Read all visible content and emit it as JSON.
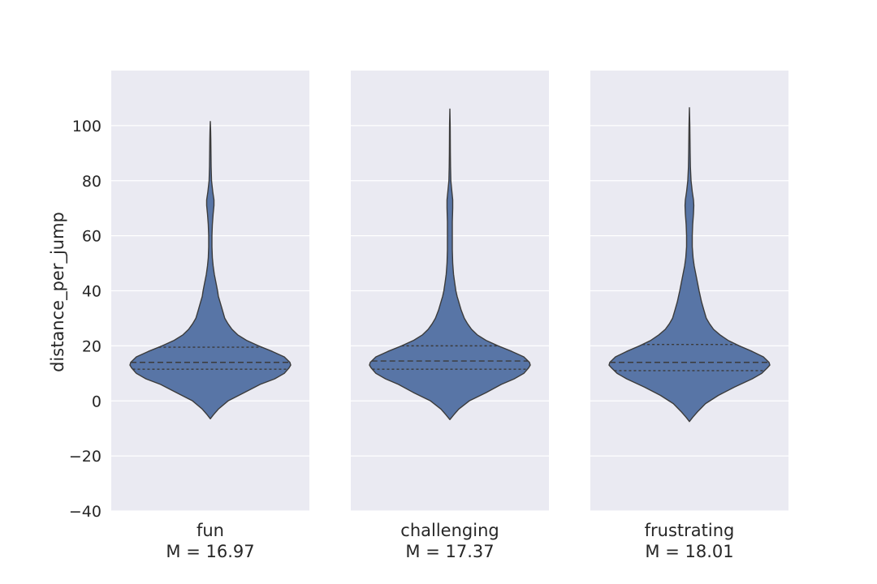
{
  "chart_data": {
    "type": "violin",
    "ylabel": "distance_per_jump",
    "ylim": [
      -40,
      120
    ],
    "yticks": [
      -40,
      -20,
      0,
      20,
      40,
      60,
      80,
      100
    ],
    "grid": true,
    "panels": [
      {
        "label": "fun",
        "mean_label": "M = 16.97",
        "quartiles": [
          11.5,
          14.0,
          19.5
        ],
        "min": -6.5,
        "max": 101.5,
        "profile": [
          [
            -6.5,
            0.0
          ],
          [
            -5,
            0.04
          ],
          [
            -3,
            0.1
          ],
          [
            0,
            0.22
          ],
          [
            3,
            0.42
          ],
          [
            6,
            0.62
          ],
          [
            8,
            0.8
          ],
          [
            10,
            0.92
          ],
          [
            12,
            0.98
          ],
          [
            13,
            1.0
          ],
          [
            14,
            0.99
          ],
          [
            16,
            0.92
          ],
          [
            18,
            0.77
          ],
          [
            20,
            0.6
          ],
          [
            22,
            0.45
          ],
          [
            24,
            0.34
          ],
          [
            26,
            0.27
          ],
          [
            28,
            0.22
          ],
          [
            30,
            0.18
          ],
          [
            33,
            0.15
          ],
          [
            36,
            0.12
          ],
          [
            38,
            0.1
          ],
          [
            40,
            0.09
          ],
          [
            43,
            0.07
          ],
          [
            46,
            0.05
          ],
          [
            49,
            0.035
          ],
          [
            52,
            0.025
          ],
          [
            56,
            0.02
          ],
          [
            60,
            0.02
          ],
          [
            64,
            0.025
          ],
          [
            68,
            0.035
          ],
          [
            71,
            0.045
          ],
          [
            73,
            0.045
          ],
          [
            76,
            0.03
          ],
          [
            80,
            0.015
          ],
          [
            85,
            0.01
          ],
          [
            90,
            0.008
          ],
          [
            95,
            0.006
          ],
          [
            98,
            0.004
          ],
          [
            101.5,
            0.0
          ]
        ]
      },
      {
        "label": "challenging",
        "mean_label": "M = 17.37",
        "quartiles": [
          11.5,
          14.5,
          20.0
        ],
        "min": -6.8,
        "max": 106,
        "profile": [
          [
            -6.8,
            0.0
          ],
          [
            -5,
            0.05
          ],
          [
            -3,
            0.11
          ],
          [
            0,
            0.24
          ],
          [
            3,
            0.45
          ],
          [
            6,
            0.64
          ],
          [
            8,
            0.8
          ],
          [
            10,
            0.92
          ],
          [
            12,
            0.98
          ],
          [
            13,
            1.0
          ],
          [
            14,
            0.99
          ],
          [
            16,
            0.92
          ],
          [
            18,
            0.77
          ],
          [
            20,
            0.6
          ],
          [
            22,
            0.45
          ],
          [
            24,
            0.34
          ],
          [
            26,
            0.27
          ],
          [
            28,
            0.22
          ],
          [
            30,
            0.18
          ],
          [
            33,
            0.14
          ],
          [
            36,
            0.11
          ],
          [
            38,
            0.09
          ],
          [
            40,
            0.075
          ],
          [
            43,
            0.06
          ],
          [
            46,
            0.045
          ],
          [
            50,
            0.035
          ],
          [
            55,
            0.03
          ],
          [
            60,
            0.03
          ],
          [
            65,
            0.03
          ],
          [
            70,
            0.035
          ],
          [
            73,
            0.035
          ],
          [
            76,
            0.025
          ],
          [
            80,
            0.012
          ],
          [
            85,
            0.008
          ],
          [
            90,
            0.006
          ],
          [
            95,
            0.005
          ],
          [
            100,
            0.004
          ],
          [
            106,
            0.0
          ]
        ]
      },
      {
        "label": "frustrating",
        "mean_label": "M = 18.01",
        "quartiles": [
          11.0,
          14.0,
          20.5
        ],
        "min": -7.5,
        "max": 106.5,
        "profile": [
          [
            -7.5,
            0.0
          ],
          [
            -6,
            0.04
          ],
          [
            -4,
            0.1
          ],
          [
            -1,
            0.2
          ],
          [
            2,
            0.36
          ],
          [
            5,
            0.56
          ],
          [
            8,
            0.78
          ],
          [
            10,
            0.9
          ],
          [
            12,
            0.97
          ],
          [
            13,
            1.0
          ],
          [
            14,
            0.99
          ],
          [
            16,
            0.92
          ],
          [
            18,
            0.78
          ],
          [
            20,
            0.62
          ],
          [
            22,
            0.48
          ],
          [
            24,
            0.38
          ],
          [
            26,
            0.3
          ],
          [
            28,
            0.25
          ],
          [
            30,
            0.21
          ],
          [
            33,
            0.18
          ],
          [
            36,
            0.15
          ],
          [
            40,
            0.12
          ],
          [
            43,
            0.1
          ],
          [
            46,
            0.08
          ],
          [
            49,
            0.06
          ],
          [
            52,
            0.045
          ],
          [
            56,
            0.035
          ],
          [
            60,
            0.035
          ],
          [
            64,
            0.04
          ],
          [
            68,
            0.05
          ],
          [
            71,
            0.055
          ],
          [
            73,
            0.05
          ],
          [
            76,
            0.035
          ],
          [
            80,
            0.02
          ],
          [
            85,
            0.012
          ],
          [
            90,
            0.009
          ],
          [
            95,
            0.007
          ],
          [
            100,
            0.005
          ],
          [
            106.5,
            0.0
          ]
        ]
      }
    ],
    "colors": {
      "violin_fill": "#5875a6",
      "violin_edge": "#3b3b3b",
      "panel_bg": "#eaeaf2",
      "grid": "#ffffff"
    }
  }
}
